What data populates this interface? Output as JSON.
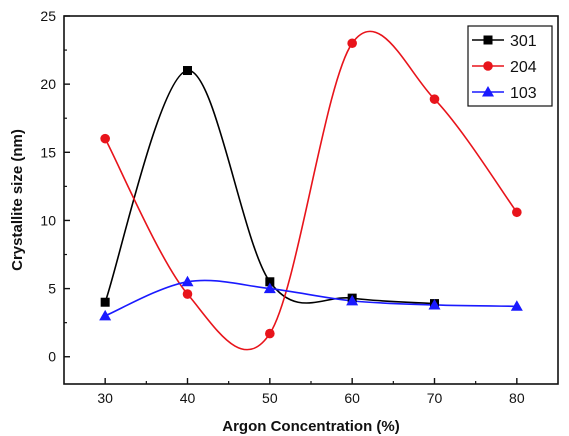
{
  "chart_data": {
    "type": "line",
    "title": "",
    "xlabel": "Argon Concentration (%)",
    "ylabel": "Crystallite size (nm)",
    "xlim": [
      25,
      85
    ],
    "ylim": [
      -2,
      25
    ],
    "xticks": [
      30,
      40,
      50,
      60,
      70,
      80
    ],
    "yticks": [
      0,
      5,
      10,
      15,
      20,
      25
    ],
    "grid": false,
    "legend_position": "top-right",
    "series": [
      {
        "name": "301",
        "color": "#000000",
        "marker": "square",
        "x": [
          30,
          40,
          50,
          60,
          70
        ],
        "y": [
          4.0,
          21.0,
          5.5,
          4.3,
          3.9
        ]
      },
      {
        "name": "204",
        "color": "#e8141b",
        "marker": "circle",
        "x": [
          30,
          40,
          50,
          60,
          70,
          80
        ],
        "y": [
          16.0,
          4.6,
          1.7,
          23.0,
          18.9,
          10.6
        ]
      },
      {
        "name": "103",
        "color": "#1a1aff",
        "marker": "triangle",
        "x": [
          30,
          40,
          50,
          60,
          70,
          80
        ],
        "y": [
          3.0,
          5.5,
          5.0,
          4.1,
          3.8,
          3.7
        ]
      }
    ]
  }
}
